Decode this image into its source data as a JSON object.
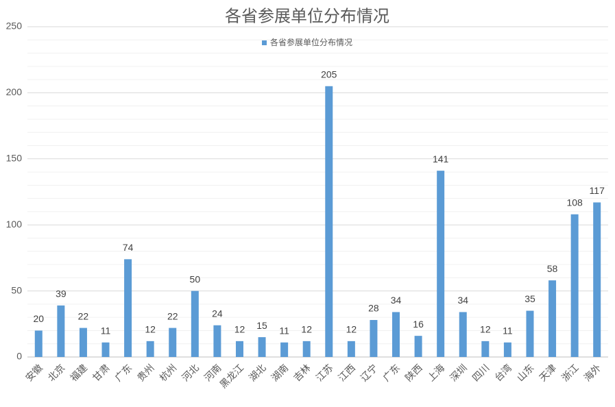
{
  "chart_data": {
    "type": "bar",
    "title": "各省参展单位分布情况",
    "categories": [
      "安徽",
      "北京",
      "福建",
      "甘肃",
      "广东",
      "贵州",
      "杭州",
      "河北",
      "河南",
      "黑龙江",
      "湖北",
      "湖南",
      "吉林",
      "江苏",
      "江西",
      "辽宁",
      "广东",
      "陕西",
      "上海",
      "深圳",
      "四川",
      "台湾",
      "山东",
      "天津",
      "浙江",
      "海外"
    ],
    "series": [
      {
        "name": "各省参展单位分布情况",
        "color": "#5b9bd5",
        "values": [
          20,
          39,
          22,
          11,
          74,
          12,
          22,
          50,
          24,
          12,
          15,
          11,
          12,
          205,
          12,
          28,
          34,
          16,
          141,
          34,
          12,
          11,
          35,
          58,
          108,
          117
        ]
      }
    ],
    "ylim": [
      0,
      250
    ],
    "yticks": [
      0,
      50,
      100,
      150,
      200,
      250
    ],
    "minor_yticks": [
      10,
      20,
      30,
      40,
      60,
      70,
      80,
      90,
      110,
      120,
      130,
      140,
      160,
      170,
      180,
      190,
      210,
      220,
      230,
      240
    ],
    "grid": true,
    "legend": "top"
  }
}
